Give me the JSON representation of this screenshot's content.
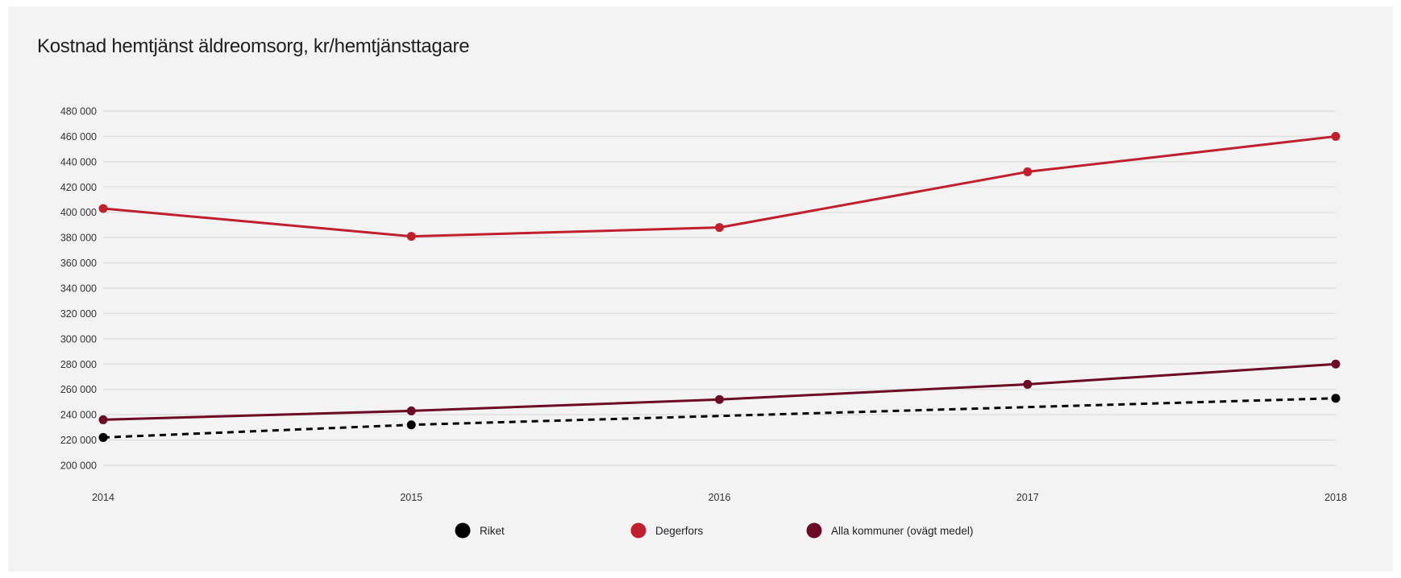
{
  "chart_data": {
    "type": "line",
    "title": "Kostnad hemtjänst äldreomsorg, kr/hemtjänsttagare",
    "x": [
      "2014",
      "2015",
      "2016",
      "2017",
      "2018"
    ],
    "ylim": [
      200000,
      480000
    ],
    "yticks": [
      200000,
      220000,
      240000,
      260000,
      280000,
      300000,
      320000,
      340000,
      360000,
      380000,
      400000,
      420000,
      440000,
      460000,
      480000
    ],
    "ytick_labels": [
      "200 000",
      "220 000",
      "240 000",
      "260 000",
      "280 000",
      "300 000",
      "320 000",
      "340 000",
      "360 000",
      "380 000",
      "400 000",
      "420 000",
      "440 000",
      "460 000",
      "480 000"
    ],
    "grid": true,
    "legend_position": "bottom",
    "series": [
      {
        "name": "Riket",
        "color": "#000000",
        "dashed": true,
        "values": [
          222000,
          232000,
          null,
          null,
          253000
        ]
      },
      {
        "name": "Degerfors",
        "color": "#c0202e",
        "dashed": false,
        "values": [
          403000,
          381000,
          388000,
          432000,
          460000
        ]
      },
      {
        "name": "Alla kommuner (ovägt medel)",
        "color": "#6b0a24",
        "dashed": false,
        "values": [
          236000,
          243000,
          252000,
          264000,
          280000
        ]
      }
    ]
  }
}
